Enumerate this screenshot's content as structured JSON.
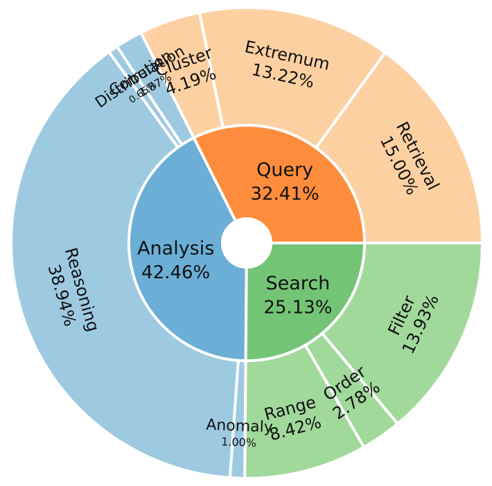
{
  "chart_data": {
    "type": "sunburst",
    "inner": [
      {
        "label": "Query",
        "value": 32.41,
        "value_label": "32.41%",
        "color": "#fd8d3c"
      },
      {
        "label": "Analysis",
        "value": 42.46,
        "value_label": "42.46%",
        "color": "#6baed6"
      },
      {
        "label": "Search",
        "value": 25.13,
        "value_label": "25.13%",
        "color": "#74c476"
      }
    ],
    "outer": [
      {
        "label": "Retrieval",
        "value": 15.0,
        "value_label": "15.00%",
        "parent": "Query",
        "color": "#fdd0a2"
      },
      {
        "label": "Extremum",
        "value": 13.22,
        "value_label": "13.22%",
        "parent": "Query",
        "color": "#fdd0a2"
      },
      {
        "label": "Cluster",
        "value": 4.19,
        "value_label": "4.19%",
        "parent": "Query",
        "color": "#fdd0a2"
      },
      {
        "label": "Correlation",
        "value": 1.87,
        "value_label": "1.87%",
        "parent": "Analysis",
        "color": "#9ecae1"
      },
      {
        "label": "Distribution",
        "value": 0.65,
        "value_label": "0.65%",
        "parent": "Analysis",
        "color": "#9ecae1"
      },
      {
        "label": "Reasoning",
        "value": 38.94,
        "value_label": "38.94%",
        "parent": "Analysis",
        "color": "#9ecae1"
      },
      {
        "label": "Anomaly",
        "value": 1.0,
        "value_label": "1.00%",
        "parent": "Analysis",
        "color": "#9ecae1"
      },
      {
        "label": "Range",
        "value": 8.42,
        "value_label": "8.42%",
        "parent": "Search",
        "color": "#a1d99b"
      },
      {
        "label": "Order",
        "value": 2.78,
        "value_label": "2.78%",
        "parent": "Search",
        "color": "#a1d99b"
      },
      {
        "label": "Filter",
        "value": 13.93,
        "value_label": "13.93%",
        "parent": "Search",
        "color": "#a1d99b"
      }
    ]
  }
}
